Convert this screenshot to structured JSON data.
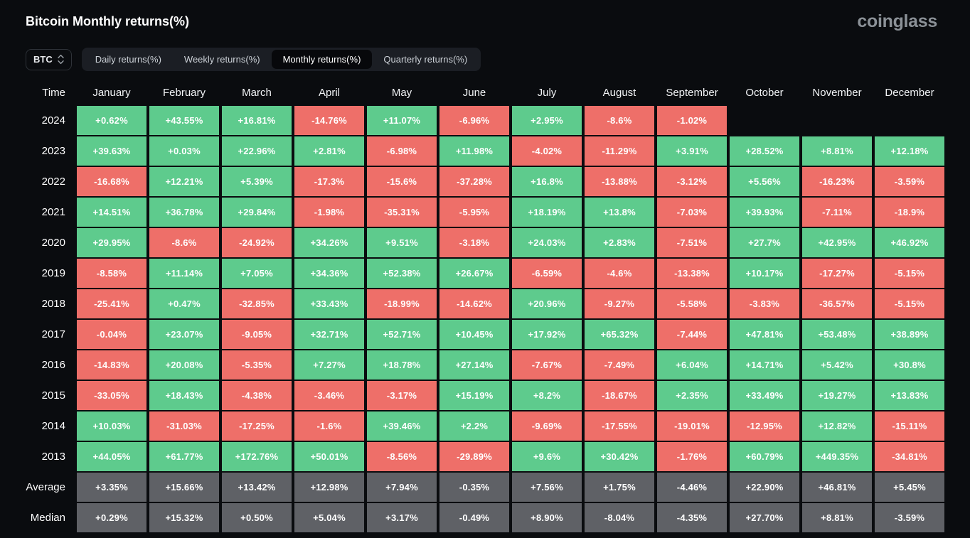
{
  "page": {
    "title": "Bitcoin Monthly returns(%)",
    "brand": "coinglass"
  },
  "controls": {
    "symbol": "BTC",
    "tabs": [
      {
        "label": "Daily returns(%)",
        "active": false
      },
      {
        "label": "Weekly returns(%)",
        "active": false
      },
      {
        "label": "Monthly returns(%)",
        "active": true
      },
      {
        "label": "Quarterly returns(%)",
        "active": false
      }
    ]
  },
  "colors": {
    "positive": "#5ecb8d",
    "negative": "#ee6f69",
    "summary": "#5f6166"
  },
  "table": {
    "time_header": "Time",
    "columns": [
      "January",
      "February",
      "March",
      "April",
      "May",
      "June",
      "July",
      "August",
      "September",
      "October",
      "November",
      "December"
    ],
    "rows": [
      {
        "label": "2024",
        "type": "year",
        "values": [
          "+0.62%",
          "+43.55%",
          "+16.81%",
          "-14.76%",
          "+11.07%",
          "-6.96%",
          "+2.95%",
          "-8.6%",
          "-1.02%",
          "",
          "",
          ""
        ]
      },
      {
        "label": "2023",
        "type": "year",
        "values": [
          "+39.63%",
          "+0.03%",
          "+22.96%",
          "+2.81%",
          "-6.98%",
          "+11.98%",
          "-4.02%",
          "-11.29%",
          "+3.91%",
          "+28.52%",
          "+8.81%",
          "+12.18%"
        ]
      },
      {
        "label": "2022",
        "type": "year",
        "values": [
          "-16.68%",
          "+12.21%",
          "+5.39%",
          "-17.3%",
          "-15.6%",
          "-37.28%",
          "+16.8%",
          "-13.88%",
          "-3.12%",
          "+5.56%",
          "-16.23%",
          "-3.59%"
        ]
      },
      {
        "label": "2021",
        "type": "year",
        "values": [
          "+14.51%",
          "+36.78%",
          "+29.84%",
          "-1.98%",
          "-35.31%",
          "-5.95%",
          "+18.19%",
          "+13.8%",
          "-7.03%",
          "+39.93%",
          "-7.11%",
          "-18.9%"
        ]
      },
      {
        "label": "2020",
        "type": "year",
        "values": [
          "+29.95%",
          "-8.6%",
          "-24.92%",
          "+34.26%",
          "+9.51%",
          "-3.18%",
          "+24.03%",
          "+2.83%",
          "-7.51%",
          "+27.7%",
          "+42.95%",
          "+46.92%"
        ]
      },
      {
        "label": "2019",
        "type": "year",
        "values": [
          "-8.58%",
          "+11.14%",
          "+7.05%",
          "+34.36%",
          "+52.38%",
          "+26.67%",
          "-6.59%",
          "-4.6%",
          "-13.38%",
          "+10.17%",
          "-17.27%",
          "-5.15%"
        ]
      },
      {
        "label": "2018",
        "type": "year",
        "values": [
          "-25.41%",
          "+0.47%",
          "-32.85%",
          "+33.43%",
          "-18.99%",
          "-14.62%",
          "+20.96%",
          "-9.27%",
          "-5.58%",
          "-3.83%",
          "-36.57%",
          "-5.15%"
        ]
      },
      {
        "label": "2017",
        "type": "year",
        "values": [
          "-0.04%",
          "+23.07%",
          "-9.05%",
          "+32.71%",
          "+52.71%",
          "+10.45%",
          "+17.92%",
          "+65.32%",
          "-7.44%",
          "+47.81%",
          "+53.48%",
          "+38.89%"
        ]
      },
      {
        "label": "2016",
        "type": "year",
        "values": [
          "-14.83%",
          "+20.08%",
          "-5.35%",
          "+7.27%",
          "+18.78%",
          "+27.14%",
          "-7.67%",
          "-7.49%",
          "+6.04%",
          "+14.71%",
          "+5.42%",
          "+30.8%"
        ]
      },
      {
        "label": "2015",
        "type": "year",
        "values": [
          "-33.05%",
          "+18.43%",
          "-4.38%",
          "-3.46%",
          "-3.17%",
          "+15.19%",
          "+8.2%",
          "-18.67%",
          "+2.35%",
          "+33.49%",
          "+19.27%",
          "+13.83%"
        ]
      },
      {
        "label": "2014",
        "type": "year",
        "values": [
          "+10.03%",
          "-31.03%",
          "-17.25%",
          "-1.6%",
          "+39.46%",
          "+2.2%",
          "-9.69%",
          "-17.55%",
          "-19.01%",
          "-12.95%",
          "+12.82%",
          "-15.11%"
        ]
      },
      {
        "label": "2013",
        "type": "year",
        "values": [
          "+44.05%",
          "+61.77%",
          "+172.76%",
          "+50.01%",
          "-8.56%",
          "-29.89%",
          "+9.6%",
          "+30.42%",
          "-1.76%",
          "+60.79%",
          "+449.35%",
          "-34.81%"
        ]
      },
      {
        "label": "Average",
        "type": "summary",
        "values": [
          "+3.35%",
          "+15.66%",
          "+13.42%",
          "+12.98%",
          "+7.94%",
          "-0.35%",
          "+7.56%",
          "+1.75%",
          "-4.46%",
          "+22.90%",
          "+46.81%",
          "+5.45%"
        ]
      },
      {
        "label": "Median",
        "type": "summary",
        "values": [
          "+0.29%",
          "+15.32%",
          "+0.50%",
          "+5.04%",
          "+3.17%",
          "-0.49%",
          "+8.90%",
          "-8.04%",
          "-4.35%",
          "+27.70%",
          "+8.81%",
          "-3.59%"
        ]
      }
    ]
  },
  "chart_data": {
    "type": "heatmap",
    "title": "Bitcoin Monthly returns(%)",
    "x_categories": [
      "January",
      "February",
      "March",
      "April",
      "May",
      "June",
      "July",
      "August",
      "September",
      "October",
      "November",
      "December"
    ],
    "y_categories": [
      "2024",
      "2023",
      "2022",
      "2021",
      "2020",
      "2019",
      "2018",
      "2017",
      "2016",
      "2015",
      "2014",
      "2013",
      "Average",
      "Median"
    ],
    "unit": "%",
    "series": [
      {
        "name": "2024",
        "values": [
          0.62,
          43.55,
          16.81,
          -14.76,
          11.07,
          -6.96,
          2.95,
          -8.6,
          -1.02,
          null,
          null,
          null
        ]
      },
      {
        "name": "2023",
        "values": [
          39.63,
          0.03,
          22.96,
          2.81,
          -6.98,
          11.98,
          -4.02,
          -11.29,
          3.91,
          28.52,
          8.81,
          12.18
        ]
      },
      {
        "name": "2022",
        "values": [
          -16.68,
          12.21,
          5.39,
          -17.3,
          -15.6,
          -37.28,
          16.8,
          -13.88,
          -3.12,
          5.56,
          -16.23,
          -3.59
        ]
      },
      {
        "name": "2021",
        "values": [
          14.51,
          36.78,
          29.84,
          -1.98,
          -35.31,
          -5.95,
          18.19,
          13.8,
          -7.03,
          39.93,
          -7.11,
          -18.9
        ]
      },
      {
        "name": "2020",
        "values": [
          29.95,
          -8.6,
          -24.92,
          34.26,
          9.51,
          -3.18,
          24.03,
          2.83,
          -7.51,
          27.7,
          42.95,
          46.92
        ]
      },
      {
        "name": "2019",
        "values": [
          -8.58,
          11.14,
          7.05,
          34.36,
          52.38,
          26.67,
          -6.59,
          -4.6,
          -13.38,
          10.17,
          -17.27,
          -5.15
        ]
      },
      {
        "name": "2018",
        "values": [
          -25.41,
          0.47,
          -32.85,
          33.43,
          -18.99,
          -14.62,
          20.96,
          -9.27,
          -5.58,
          -3.83,
          -36.57,
          -5.15
        ]
      },
      {
        "name": "2017",
        "values": [
          -0.04,
          23.07,
          -9.05,
          32.71,
          52.71,
          10.45,
          17.92,
          65.32,
          -7.44,
          47.81,
          53.48,
          38.89
        ]
      },
      {
        "name": "2016",
        "values": [
          -14.83,
          20.08,
          -5.35,
          7.27,
          18.78,
          27.14,
          -7.67,
          -7.49,
          6.04,
          14.71,
          5.42,
          30.8
        ]
      },
      {
        "name": "2015",
        "values": [
          -33.05,
          18.43,
          -4.38,
          -3.46,
          -3.17,
          15.19,
          8.2,
          -18.67,
          2.35,
          33.49,
          19.27,
          13.83
        ]
      },
      {
        "name": "2014",
        "values": [
          10.03,
          -31.03,
          -17.25,
          -1.6,
          39.46,
          2.2,
          -9.69,
          -17.55,
          -19.01,
          -12.95,
          12.82,
          -15.11
        ]
      },
      {
        "name": "2013",
        "values": [
          44.05,
          61.77,
          172.76,
          50.01,
          -8.56,
          -29.89,
          9.6,
          30.42,
          -1.76,
          60.79,
          449.35,
          -34.81
        ]
      },
      {
        "name": "Average",
        "values": [
          3.35,
          15.66,
          13.42,
          12.98,
          7.94,
          -0.35,
          7.56,
          1.75,
          -4.46,
          22.9,
          46.81,
          5.45
        ]
      },
      {
        "name": "Median",
        "values": [
          0.29,
          15.32,
          0.5,
          5.04,
          3.17,
          -0.49,
          8.9,
          -8.04,
          -4.35,
          27.7,
          8.81,
          -3.59
        ]
      }
    ],
    "legend": "green = positive month, red = negative month, grey = Average/Median summary rows"
  }
}
